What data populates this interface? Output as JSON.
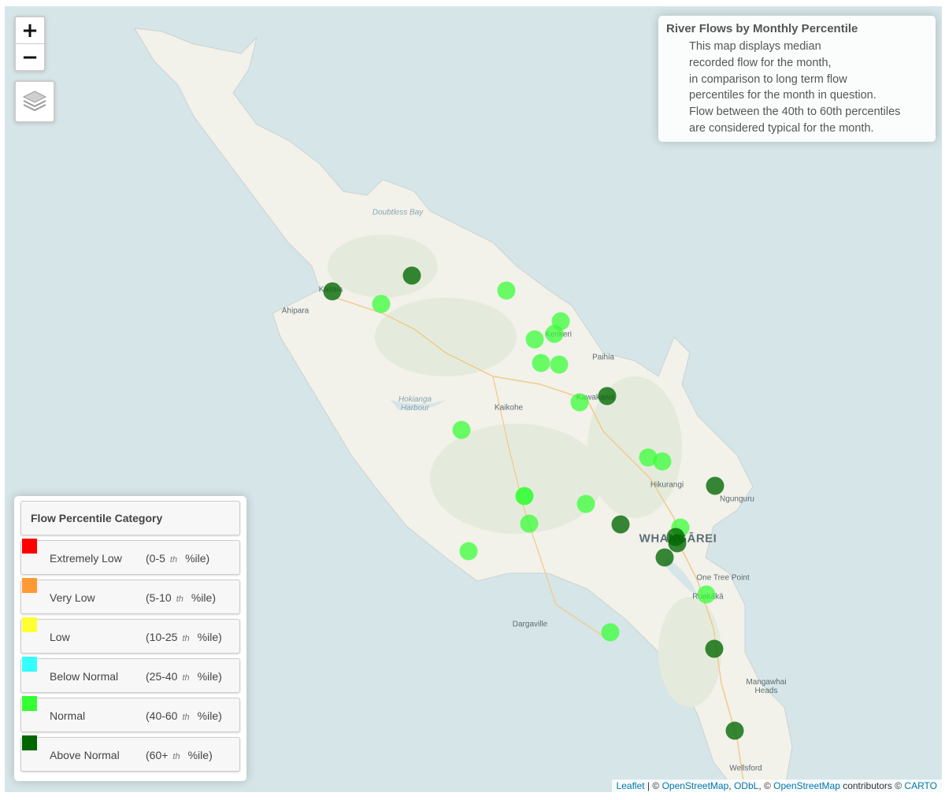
{
  "map": {
    "zoom_in_label": "+",
    "zoom_out_label": "−",
    "layers_icon": "layers-icon"
  },
  "info_panel": {
    "title": "River Flows by Monthly Percentile",
    "lines": [
      "This map displays median",
      "recorded flow for the month,",
      "in comparison to long term flow",
      "percentiles for the month in question.",
      "Flow between the 40th to 60th percentiles",
      "are considered typical for the month."
    ]
  },
  "legend": {
    "title": "Flow Percentile Category",
    "items": [
      {
        "name": "Extremely Low",
        "range_start": "(0-5",
        "th": "th",
        "range_end": "%ile)",
        "color": "#ff0000"
      },
      {
        "name": "Very Low",
        "range_start": "(5-10",
        "th": "th",
        "range_end": "%ile)",
        "color": "#ff9933"
      },
      {
        "name": "Low",
        "range_start": "(10-25",
        "th": "th",
        "range_end": "%ile)",
        "color": "#ffff33"
      },
      {
        "name": "Below Normal",
        "range_start": "(25-40",
        "th": "th",
        "range_end": "%ile)",
        "color": "#33ffff"
      },
      {
        "name": "Normal",
        "range_start": "(40-60",
        "th": "th",
        "range_end": "%ile)",
        "color": "#33ff33"
      },
      {
        "name": "Above Normal",
        "range_start": "(60+",
        "th": "th",
        "range_end": "%ile)",
        "color": "#006600"
      }
    ]
  },
  "places": [
    {
      "name": "Doubtless Bay",
      "kind": "water"
    },
    {
      "name": "Kaitaia",
      "kind": "town"
    },
    {
      "name": "Ahipara",
      "kind": "town"
    },
    {
      "name": "Kerikeri",
      "kind": "town"
    },
    {
      "name": "Paihia",
      "kind": "town"
    },
    {
      "name": "Kawakawa",
      "kind": "town"
    },
    {
      "name": "Hokianga Harbour",
      "kind": "water"
    },
    {
      "name": "Kaikohe",
      "kind": "town"
    },
    {
      "name": "Hikurangi",
      "kind": "town"
    },
    {
      "name": "Ngunguru",
      "kind": "town"
    },
    {
      "name": "WHANGĀREI",
      "kind": "city"
    },
    {
      "name": "One Tree Point",
      "kind": "town"
    },
    {
      "name": "Ruakākā",
      "kind": "town"
    },
    {
      "name": "Dargaville",
      "kind": "town"
    },
    {
      "name": "Mangawhai Heads",
      "kind": "town"
    },
    {
      "name": "Wellsford",
      "kind": "town"
    }
  ],
  "stations_category_counts": {
    "Normal": 20,
    "Above Normal": 10
  },
  "attribution": {
    "leaflet": "Leaflet",
    "sep1": " | © ",
    "osm1": "OpenStreetMap",
    "comma": ", ",
    "odbl": "ODbL",
    "sep2": ", © ",
    "osm2": "OpenStreetMap",
    "contrib": " contributors © ",
    "carto": "CARTO"
  }
}
